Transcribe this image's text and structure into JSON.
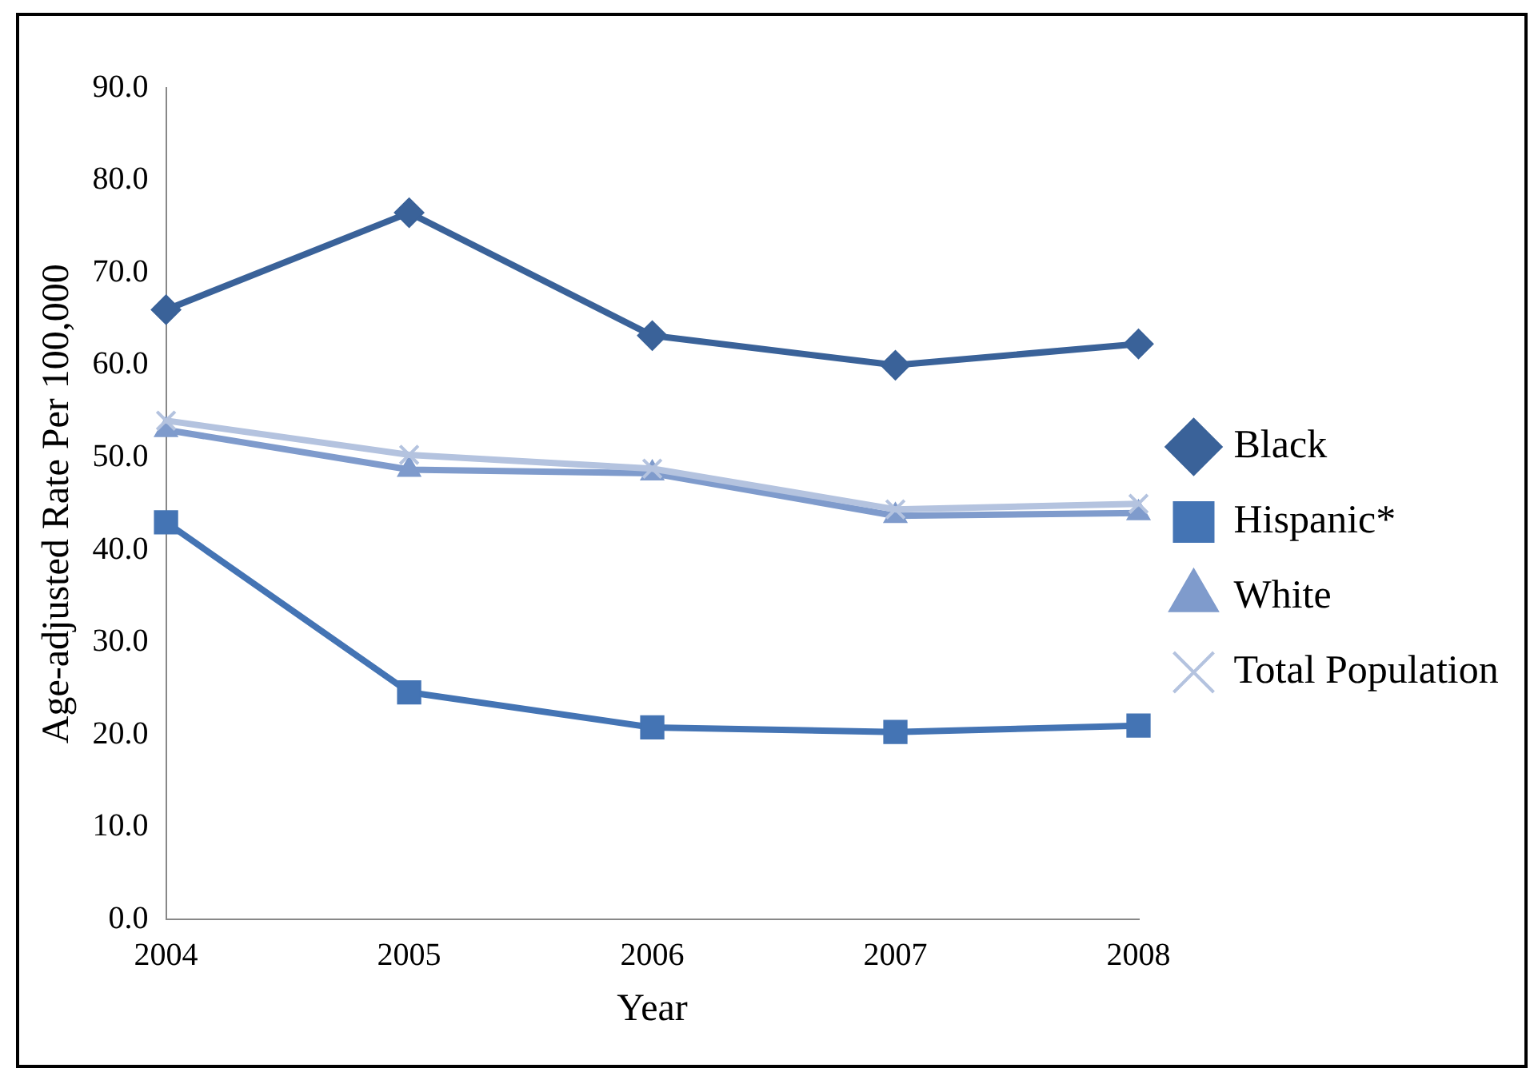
{
  "chart_data": {
    "type": "line",
    "xlabel": "Year",
    "ylabel": "Age-adjusted Rate Per 100,000",
    "categories": [
      "2004",
      "2005",
      "2006",
      "2007",
      "2008"
    ],
    "series": [
      {
        "name": "Black",
        "color": "#3a6299",
        "marker": "diamond",
        "values": [
          66.0,
          76.5,
          63.2,
          60.0,
          62.3
        ]
      },
      {
        "name": "Hispanic*",
        "color": "#4474b4",
        "marker": "square",
        "values": [
          43.0,
          24.6,
          20.8,
          20.3,
          21.0
        ]
      },
      {
        "name": "White",
        "color": "#7f9bcc",
        "marker": "triangle",
        "values": [
          53.0,
          48.7,
          48.3,
          43.7,
          44.0
        ]
      },
      {
        "name": "Total Population",
        "color": "#b4c3df",
        "marker": "cross",
        "values": [
          54.0,
          50.3,
          48.8,
          44.4,
          45.0
        ]
      }
    ],
    "ylim": [
      0,
      90
    ],
    "yticks": [
      {
        "value": 0,
        "label": "0.0"
      },
      {
        "value": 10,
        "label": "10.0"
      },
      {
        "value": 20,
        "label": "20.0"
      },
      {
        "value": 30,
        "label": "30.0"
      },
      {
        "value": 40,
        "label": "40.0"
      },
      {
        "value": 50,
        "label": "50.0"
      },
      {
        "value": 60,
        "label": "60.0"
      },
      {
        "value": 70,
        "label": "70.0"
      },
      {
        "value": 80,
        "label": "80.0"
      },
      {
        "value": 90,
        "label": "90.0"
      }
    ],
    "grid": false,
    "legend": "right",
    "line_style": "solid"
  }
}
